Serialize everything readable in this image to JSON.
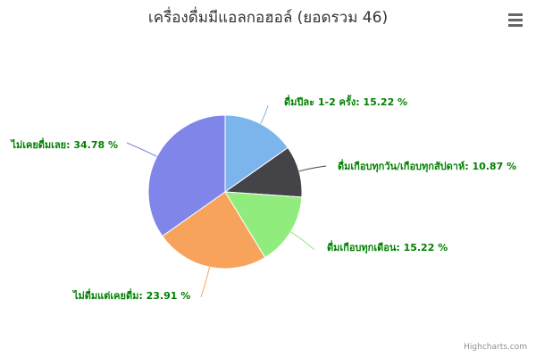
{
  "chart_data": {
    "type": "pie",
    "title": "เครื่องดื่มมีแอลกอฮอล์ (ยอดรวม 46)",
    "slices": [
      {
        "label": "ดื่มปีละ 1-2 ครั้ง: 15.22 %",
        "value": 15.22,
        "color": "#7cb5ec"
      },
      {
        "label": "ดื่มเกือบทุกวัน/เกือบทุกสัปดาห์: 10.87 %",
        "value": 10.87,
        "color": "#434348"
      },
      {
        "label": "ดื่มเกือบทุกเดือน: 15.22 %",
        "value": 15.22,
        "color": "#90ed7d"
      },
      {
        "label": "ไม่ดื่มแต่เคยดื่ม: 23.91 %",
        "value": 23.91,
        "color": "#f7a35c"
      },
      {
        "label": "ไม่เคยดื่มเลย: 34.78 %",
        "value": 34.78,
        "color": "#8085e9"
      }
    ],
    "label_color": "#008000",
    "legend": "none"
  },
  "credits": "Highcharts.com",
  "menu_icon": "hamburger-menu-icon"
}
